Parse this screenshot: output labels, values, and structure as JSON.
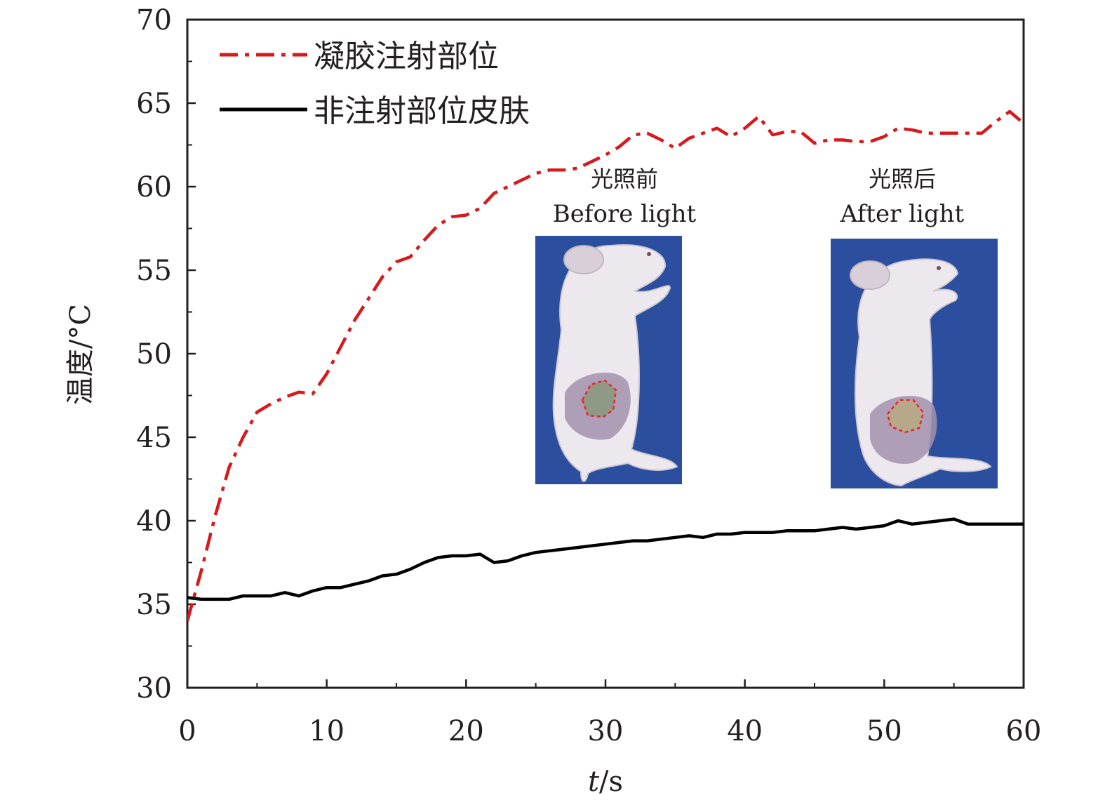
{
  "chart_data": {
    "type": "line",
    "xlabel_italic": "t",
    "xlabel_unit": "/s",
    "ylabel": "温度/°C",
    "xlim": [
      0,
      60
    ],
    "ylim": [
      30,
      70
    ],
    "x_ticks": [
      "0",
      "10",
      "20",
      "30",
      "40",
      "50",
      "60"
    ],
    "y_ticks": [
      "30",
      "35",
      "40",
      "45",
      "50",
      "55",
      "60",
      "65",
      "70"
    ],
    "legend_position": "top-left",
    "series": [
      {
        "name": "凝胶注射部位",
        "color": "#d7191c",
        "style": "dash-dot",
        "x": [
          0,
          0.5,
          1,
          2,
          3,
          4,
          5,
          6,
          7,
          8,
          9,
          10,
          11,
          12,
          13,
          14,
          15,
          16,
          17,
          18,
          19,
          20,
          21,
          22,
          23,
          24,
          25,
          26,
          27,
          28,
          29,
          30,
          31,
          32,
          33,
          34,
          35,
          36,
          37,
          38,
          39,
          40,
          41,
          42,
          43,
          44,
          45,
          46,
          47,
          48,
          49,
          50,
          51,
          52,
          53,
          54,
          55,
          56,
          57,
          58,
          59,
          60
        ],
        "y": [
          34.0,
          35.5,
          37.0,
          40.3,
          43.2,
          45.0,
          46.5,
          47.0,
          47.4,
          47.7,
          47.6,
          48.8,
          50.4,
          52.0,
          53.3,
          54.6,
          55.5,
          55.8,
          56.8,
          57.7,
          58.2,
          58.3,
          58.7,
          59.6,
          60.0,
          60.4,
          60.8,
          61.0,
          61.0,
          61.1,
          61.5,
          61.9,
          62.4,
          63.1,
          63.2,
          62.8,
          62.3,
          62.9,
          63.2,
          63.5,
          63.0,
          63.5,
          64.2,
          63.1,
          63.3,
          63.3,
          62.6,
          62.8,
          62.8,
          62.7,
          62.7,
          63.0,
          63.5,
          63.4,
          63.2,
          63.2,
          63.2,
          63.2,
          63.2,
          63.9,
          64.5,
          63.8
        ]
      },
      {
        "name": "非注射部位皮肤",
        "color": "#000000",
        "style": "solid",
        "x": [
          0,
          1,
          2,
          3,
          4,
          5,
          6,
          7,
          8,
          9,
          10,
          11,
          12,
          13,
          14,
          15,
          16,
          17,
          18,
          19,
          20,
          21,
          22,
          23,
          24,
          25,
          26,
          27,
          28,
          29,
          30,
          31,
          32,
          33,
          34,
          35,
          36,
          37,
          38,
          39,
          40,
          41,
          42,
          43,
          44,
          45,
          46,
          47,
          48,
          49,
          50,
          51,
          52,
          53,
          54,
          55,
          56,
          57,
          58,
          59,
          60
        ],
        "y": [
          35.4,
          35.3,
          35.3,
          35.3,
          35.5,
          35.5,
          35.5,
          35.7,
          35.5,
          35.8,
          36.0,
          36.0,
          36.2,
          36.4,
          36.7,
          36.8,
          37.1,
          37.5,
          37.8,
          37.9,
          37.9,
          38.0,
          37.5,
          37.6,
          37.9,
          38.1,
          38.2,
          38.3,
          38.4,
          38.5,
          38.6,
          38.7,
          38.8,
          38.8,
          38.9,
          39.0,
          39.1,
          39.0,
          39.2,
          39.2,
          39.3,
          39.3,
          39.3,
          39.4,
          39.4,
          39.4,
          39.5,
          39.6,
          39.5,
          39.6,
          39.7,
          40.0,
          39.8,
          39.9,
          40.0,
          40.1,
          39.8,
          39.8,
          39.8,
          39.8,
          39.8
        ]
      }
    ],
    "insets": [
      {
        "label_zh": "光照前",
        "label_en": "Before light"
      },
      {
        "label_zh": "光照后",
        "label_en": "After light"
      }
    ]
  },
  "colors": {
    "axis": "#231f20",
    "photo_background": "#2b4f9e",
    "mouse_fur": "#ece8ee",
    "skin_patch": "#a391ad",
    "marker": "#e8262b"
  }
}
